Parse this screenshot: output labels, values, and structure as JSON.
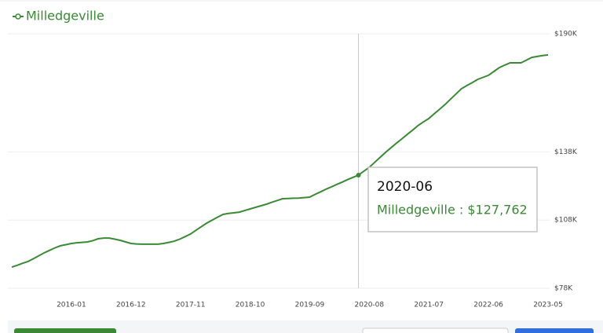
{
  "chart_data": {
    "type": "line",
    "x": [
      "2015-02",
      "2015-03",
      "2015-04",
      "2015-05",
      "2015-06",
      "2015-07",
      "2015-08",
      "2015-09",
      "2015-10",
      "2015-11",
      "2015-12",
      "2016-01",
      "2016-02",
      "2016-03",
      "2016-04",
      "2016-05",
      "2016-06",
      "2016-07",
      "2016-08",
      "2016-09",
      "2016-10",
      "2016-11",
      "2016-12",
      "2017-01",
      "2017-02",
      "2017-03",
      "2017-04",
      "2017-05",
      "2017-06",
      "2017-07",
      "2017-08",
      "2017-09",
      "2017-10",
      "2017-11",
      "2017-12",
      "2018-01",
      "2018-02",
      "2018-03",
      "2018-04",
      "2018-05",
      "2018-06",
      "2018-07",
      "2018-08",
      "2018-09",
      "2018-10",
      "2018-11",
      "2018-12",
      "2019-01",
      "2019-02",
      "2019-03",
      "2019-04",
      "2019-05",
      "2019-06",
      "2019-07",
      "2019-08",
      "2019-09",
      "2019-10",
      "2019-11",
      "2019-12",
      "2020-01",
      "2020-02",
      "2020-03",
      "2020-04",
      "2020-05",
      "2020-06",
      "2020-07",
      "2020-08",
      "2020-09",
      "2020-10",
      "2020-11",
      "2020-12",
      "2021-01",
      "2021-02",
      "2021-03",
      "2021-04",
      "2021-05",
      "2021-06",
      "2021-07",
      "2021-08",
      "2021-09",
      "2021-10",
      "2021-11",
      "2021-12",
      "2022-01",
      "2022-02",
      "2022-03",
      "2022-04",
      "2022-05",
      "2022-06",
      "2022-07",
      "2022-08",
      "2022-09",
      "2022-10",
      "2022-11",
      "2022-12",
      "2023-01",
      "2023-02",
      "2023-03",
      "2023-04",
      "2023-05"
    ],
    "series": [
      {
        "name": "Milledgeville",
        "color": "#3a8a35",
        "values": [
          87300,
          88100,
          89000,
          89800,
          91000,
          92300,
          93600,
          94700,
          95800,
          96700,
          97200,
          97700,
          98000,
          98200,
          98400,
          99000,
          99800,
          100100,
          100100,
          99600,
          99100,
          98400,
          97700,
          97500,
          97400,
          97400,
          97400,
          97400,
          97700,
          98200,
          98700,
          99600,
          100700,
          101900,
          103500,
          105100,
          106700,
          108000,
          109300,
          110500,
          110900,
          111200,
          111500,
          112200,
          112900,
          113600,
          114300,
          115000,
          115800,
          116600,
          117400,
          117500,
          117600,
          117700,
          117900,
          118100,
          119300,
          120400,
          121600,
          122600,
          123700,
          124700,
          125800,
          126800,
          127762,
          129500,
          131200,
          133400,
          135600,
          137800,
          139800,
          141800,
          143700,
          145700,
          147600,
          149600,
          151200,
          152700,
          154800,
          156800,
          158900,
          161200,
          163500,
          165800,
          167200,
          168500,
          169900,
          170800,
          171700,
          173400,
          175100,
          176200,
          177200,
          177200,
          177200,
          178400,
          179600,
          180000,
          180400,
          180700
        ]
      }
    ],
    "xticks": [
      "2016-01",
      "2016-12",
      "2017-11",
      "2018-10",
      "2019-09",
      "2020-08",
      "2021-07",
      "2022-06",
      "2023-05"
    ],
    "ylim": [
      78000,
      190000
    ],
    "yticks": [
      {
        "value": 78000,
        "label": "$78K"
      },
      {
        "value": 108000,
        "label": "$108K"
      },
      {
        "value": 138000,
        "label": "$138K"
      },
      {
        "value": 190000,
        "label": "$190K"
      }
    ],
    "grid": true,
    "tooltip": "Milledgeville : $127,762"
  }
}
